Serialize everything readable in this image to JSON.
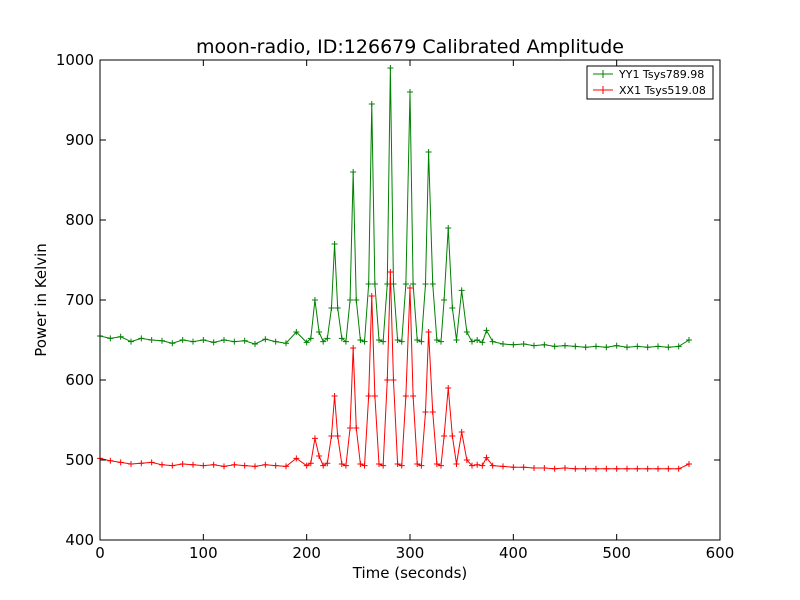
{
  "chart_data": {
    "type": "line",
    "title": "moon-radio, ID:126679 Calibrated Amplitude",
    "xlabel": "Time (seconds)",
    "ylabel": "Power in Kelvin",
    "xlim": [
      0,
      600
    ],
    "ylim": [
      400,
      1000
    ],
    "xticks": [
      0,
      100,
      200,
      300,
      400,
      500,
      600
    ],
    "yticks": [
      400,
      500,
      600,
      700,
      800,
      900,
      1000
    ],
    "xtick_labels": [
      "0",
      "100",
      "200",
      "300",
      "400",
      "500",
      "600"
    ],
    "ytick_labels": [
      "400",
      "500",
      "600",
      "700",
      "800",
      "900",
      "1000"
    ],
    "grid": false,
    "legend_position": "top-right",
    "marker": "+",
    "series": [
      {
        "name": "YY1 Tsys789.98",
        "color": "#008000",
        "x": [
          0,
          10,
          20,
          30,
          40,
          50,
          60,
          70,
          80,
          90,
          100,
          110,
          120,
          130,
          140,
          150,
          160,
          170,
          180,
          190,
          200,
          204,
          208,
          212,
          216,
          220,
          224,
          227,
          230,
          234,
          238,
          242,
          245,
          248,
          252,
          256,
          260,
          263,
          266,
          270,
          274,
          278,
          281,
          284,
          288,
          292,
          296,
          300,
          303,
          307,
          311,
          315,
          318,
          322,
          326,
          330,
          333,
          337,
          341,
          345,
          350,
          355,
          360,
          365,
          370,
          374,
          380,
          390,
          400,
          410,
          420,
          430,
          440,
          450,
          460,
          470,
          480,
          490,
          500,
          510,
          520,
          530,
          540,
          550,
          560,
          570
        ],
        "y": [
          655,
          652,
          654,
          648,
          652,
          650,
          649,
          646,
          650,
          648,
          650,
          647,
          650,
          648,
          649,
          645,
          651,
          648,
          646,
          660,
          647,
          652,
          700,
          660,
          648,
          652,
          690,
          770,
          690,
          652,
          648,
          700,
          860,
          700,
          650,
          648,
          720,
          945,
          720,
          650,
          648,
          720,
          990,
          720,
          650,
          648,
          720,
          960,
          720,
          650,
          648,
          720,
          885,
          720,
          650,
          648,
          700,
          790,
          690,
          650,
          712,
          660,
          648,
          650,
          647,
          662,
          648,
          645,
          644,
          645,
          643,
          644,
          642,
          643,
          642,
          641,
          642,
          641,
          643,
          641,
          642,
          641,
          642,
          641,
          642,
          650
        ]
      },
      {
        "name": "XX1 Tsys519.08",
        "color": "#ff0000",
        "x": [
          0,
          10,
          20,
          30,
          40,
          50,
          60,
          70,
          80,
          90,
          100,
          110,
          120,
          130,
          140,
          150,
          160,
          170,
          180,
          190,
          200,
          204,
          208,
          212,
          216,
          220,
          224,
          227,
          230,
          234,
          238,
          242,
          245,
          248,
          252,
          256,
          260,
          263,
          266,
          270,
          274,
          278,
          281,
          284,
          288,
          292,
          296,
          300,
          303,
          307,
          311,
          315,
          318,
          322,
          326,
          330,
          333,
          337,
          341,
          345,
          350,
          355,
          360,
          365,
          370,
          374,
          380,
          390,
          400,
          410,
          420,
          430,
          440,
          450,
          460,
          470,
          480,
          490,
          500,
          510,
          520,
          530,
          540,
          550,
          560,
          570
        ],
        "y": [
          502,
          499,
          497,
          495,
          496,
          497,
          494,
          493,
          495,
          494,
          493,
          494,
          492,
          494,
          493,
          492,
          494,
          493,
          492,
          502,
          493,
          496,
          527,
          505,
          493,
          496,
          530,
          580,
          530,
          495,
          493,
          540,
          640,
          540,
          495,
          493,
          580,
          705,
          580,
          495,
          493,
          600,
          735,
          600,
          495,
          493,
          580,
          715,
          580,
          495,
          493,
          560,
          660,
          560,
          495,
          493,
          530,
          590,
          530,
          495,
          535,
          500,
          493,
          494,
          493,
          503,
          493,
          492,
          491,
          491,
          490,
          490,
          489,
          490,
          489,
          489,
          489,
          489,
          489,
          489,
          489,
          489,
          489,
          489,
          489,
          495
        ]
      }
    ]
  }
}
